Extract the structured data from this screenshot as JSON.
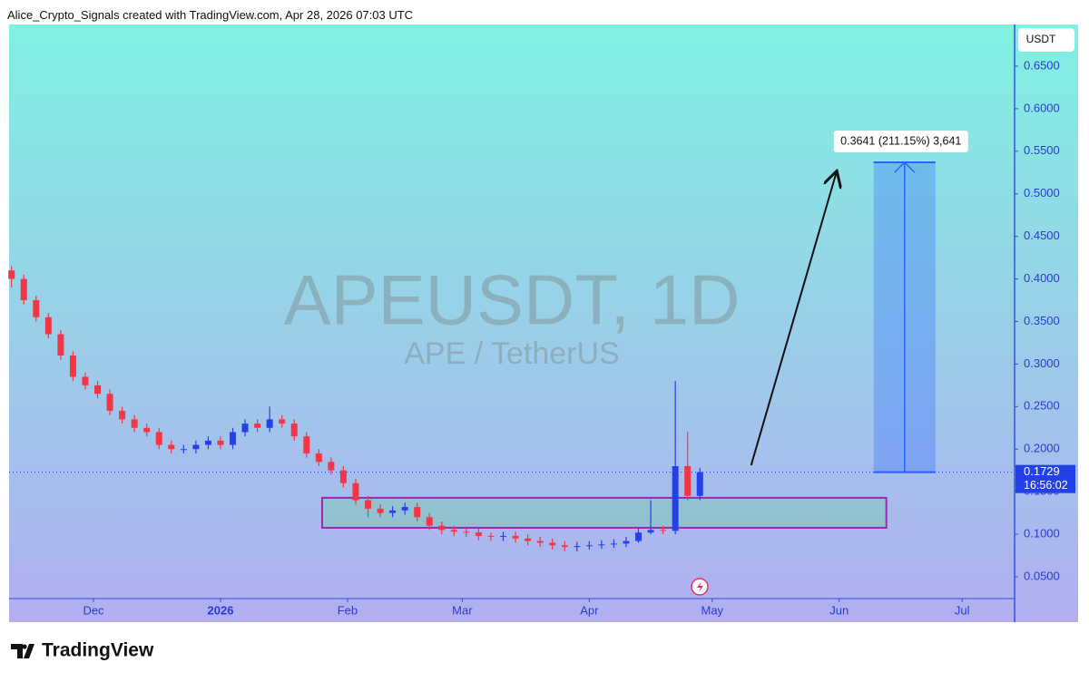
{
  "attribution": "Alice_Crypto_Signals created with TradingView.com, Apr 28, 2026 07:03 UTC",
  "brand": "TradingView",
  "chart_data": {
    "type": "candlestick",
    "title": "APEUSDT, 1D",
    "subtitle": "APE / TetherUS",
    "y_label": "USDT",
    "up_color": "#2440e8",
    "down_color": "#f23645",
    "xlim": [
      -20.6,
      224.8
    ],
    "ylim": [
      0.0244,
      0.699
    ],
    "xticks": [
      {
        "value": 0,
        "label": "Dec"
      },
      {
        "value": 31,
        "label": "2026"
      },
      {
        "value": 62,
        "label": "Feb"
      },
      {
        "value": 90,
        "label": "Mar"
      },
      {
        "value": 121,
        "label": "Apr"
      },
      {
        "value": 151,
        "label": "May"
      },
      {
        "value": 182,
        "label": "Jun"
      },
      {
        "value": 212,
        "label": "Jul"
      }
    ],
    "yticks": [
      {
        "value": 0.05,
        "label": "0.0500"
      },
      {
        "value": 0.1,
        "label": "0.1000"
      },
      {
        "value": 0.15,
        "label": "0.1500"
      },
      {
        "value": 0.2,
        "label": "0.2000"
      },
      {
        "value": 0.25,
        "label": "0.2500"
      },
      {
        "value": 0.3,
        "label": "0.3000"
      },
      {
        "value": 0.35,
        "label": "0.3500"
      },
      {
        "value": 0.4,
        "label": "0.4000"
      },
      {
        "value": 0.45,
        "label": "0.4500"
      },
      {
        "value": 0.5,
        "label": "0.5000"
      },
      {
        "value": 0.55,
        "label": "0.5500"
      },
      {
        "value": 0.6,
        "label": "0.6000"
      },
      {
        "value": 0.65,
        "label": "0.6500"
      }
    ],
    "x": [
      -20,
      -17,
      -14,
      -11,
      -8,
      -5,
      -2,
      1,
      4,
      7,
      10,
      13,
      16,
      19,
      22,
      25,
      28,
      31,
      34,
      37,
      40,
      43,
      46,
      49,
      52,
      55,
      58,
      61,
      64,
      67,
      70,
      73,
      76,
      79,
      82,
      85,
      88,
      91,
      94,
      97,
      100,
      103,
      106,
      109,
      112,
      115,
      118,
      121,
      124,
      127,
      130,
      133,
      136,
      139,
      142,
      145,
      148
    ],
    "open": [
      0.41,
      0.4,
      0.375,
      0.355,
      0.335,
      0.31,
      0.285,
      0.275,
      0.265,
      0.245,
      0.235,
      0.225,
      0.22,
      0.205,
      0.2,
      0.2,
      0.205,
      0.21,
      0.205,
      0.22,
      0.23,
      0.225,
      0.235,
      0.23,
      0.215,
      0.195,
      0.185,
      0.175,
      0.16,
      0.14,
      0.13,
      0.125,
      0.128,
      0.132,
      0.12,
      0.11,
      0.105,
      0.103,
      0.102,
      0.098,
      0.097,
      0.098,
      0.095,
      0.092,
      0.09,
      0.087,
      0.085,
      0.086,
      0.087,
      0.088,
      0.089,
      0.092,
      0.102,
      0.105,
      0.104,
      0.18,
      0.145
    ],
    "high": [
      0.415,
      0.405,
      0.38,
      0.36,
      0.34,
      0.315,
      0.29,
      0.28,
      0.27,
      0.25,
      0.24,
      0.23,
      0.225,
      0.21,
      0.205,
      0.21,
      0.215,
      0.215,
      0.225,
      0.235,
      0.235,
      0.25,
      0.24,
      0.235,
      0.22,
      0.2,
      0.19,
      0.18,
      0.165,
      0.145,
      0.135,
      0.133,
      0.137,
      0.137,
      0.125,
      0.115,
      0.11,
      0.107,
      0.107,
      0.102,
      0.103,
      0.103,
      0.1,
      0.097,
      0.095,
      0.092,
      0.091,
      0.092,
      0.093,
      0.094,
      0.097,
      0.107,
      0.14,
      0.11,
      0.28,
      0.22,
      0.178
    ],
    "low": [
      0.39,
      0.37,
      0.35,
      0.33,
      0.305,
      0.28,
      0.27,
      0.26,
      0.24,
      0.23,
      0.22,
      0.215,
      0.2,
      0.195,
      0.195,
      0.195,
      0.2,
      0.2,
      0.2,
      0.215,
      0.22,
      0.22,
      0.225,
      0.21,
      0.19,
      0.18,
      0.17,
      0.155,
      0.135,
      0.12,
      0.12,
      0.12,
      0.123,
      0.115,
      0.105,
      0.1,
      0.098,
      0.097,
      0.093,
      0.092,
      0.092,
      0.09,
      0.087,
      0.085,
      0.082,
      0.08,
      0.08,
      0.082,
      0.083,
      0.084,
      0.085,
      0.09,
      0.1,
      0.1,
      0.1,
      0.14,
      0.14
    ],
    "close": [
      0.4,
      0.375,
      0.355,
      0.335,
      0.31,
      0.285,
      0.275,
      0.265,
      0.245,
      0.235,
      0.225,
      0.22,
      0.205,
      0.2,
      0.2,
      0.205,
      0.21,
      0.205,
      0.22,
      0.23,
      0.225,
      0.235,
      0.23,
      0.215,
      0.195,
      0.185,
      0.175,
      0.16,
      0.14,
      0.13,
      0.125,
      0.128,
      0.132,
      0.12,
      0.11,
      0.105,
      0.103,
      0.102,
      0.098,
      0.097,
      0.098,
      0.095,
      0.092,
      0.09,
      0.087,
      0.085,
      0.086,
      0.087,
      0.088,
      0.089,
      0.092,
      0.102,
      0.105,
      0.104,
      0.18,
      0.145,
      0.173
    ],
    "last_price": {
      "value": 0.1729,
      "countdown": "16:56:02"
    },
    "support_zone": {
      "x": [
        55.8,
        193.5
      ],
      "y": [
        0.1076,
        0.1428
      ],
      "color": "#9c27b0"
    },
    "target_zone": {
      "x": [
        190.4,
        205.5
      ],
      "y": [
        0.1729,
        0.537
      ],
      "label": "0.3641 (211.15%) 3,641",
      "color": "#2962ff"
    },
    "arrow": {
      "x": [
        160.5,
        181.3
      ],
      "y": [
        0.181,
        0.525
      ]
    }
  }
}
